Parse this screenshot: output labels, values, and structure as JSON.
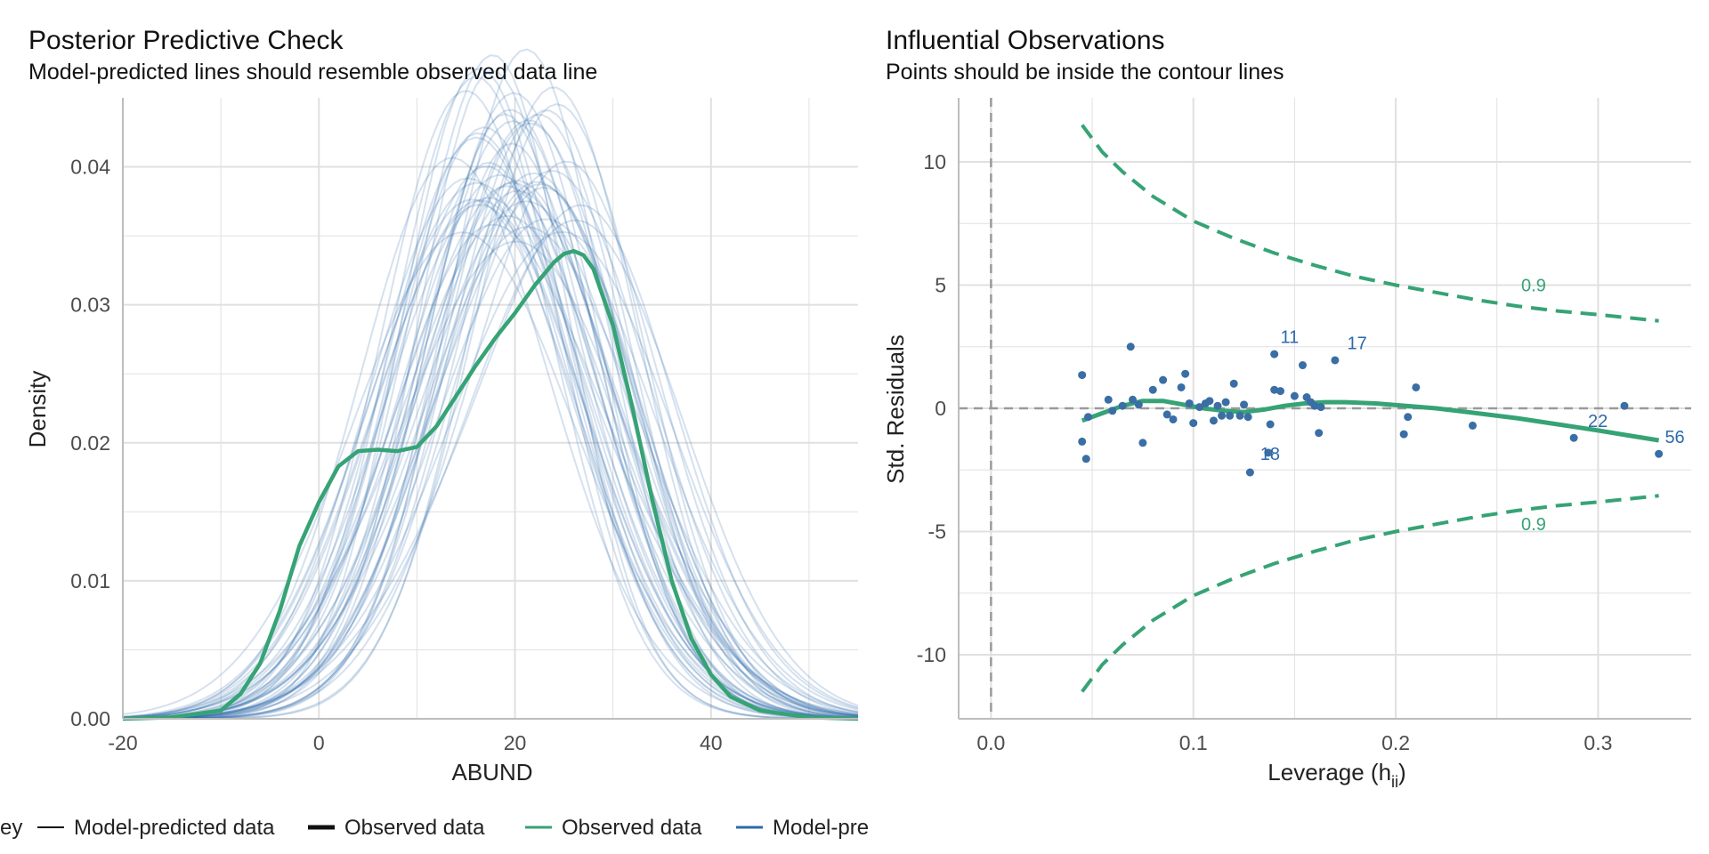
{
  "colors": {
    "observed": "#36A375",
    "predicted": "#2D6AAB",
    "points": "#3A6EA5",
    "grid": "#e0e0e0",
    "axis": "#bdbdbd",
    "reference": "#9a9a9a"
  },
  "legend": {
    "title": "ey",
    "items": [
      {
        "label": "Model-predicted data",
        "style": "thin-black"
      },
      {
        "label": "Observed data",
        "style": "thick-black"
      },
      {
        "label": "Observed data",
        "style": "green"
      },
      {
        "label": "Model-pre",
        "style": "blue"
      }
    ]
  },
  "chart_data": [
    {
      "type": "line",
      "title": "Posterior Predictive Check",
      "subtitle": "Model-predicted lines should resemble observed data line",
      "xlabel": "ABUND",
      "ylabel": "Density",
      "xlim": [
        -20,
        55
      ],
      "ylim": [
        0,
        0.045
      ],
      "xticks": [
        -20,
        0,
        20,
        40
      ],
      "xtick_labels": [
        "-20",
        "0",
        "20",
        "40"
      ],
      "yticks": [
        0,
        0.01,
        0.02,
        0.03,
        0.04
      ],
      "ytick_labels": [
        "0.00",
        "0.01",
        "0.02",
        "0.03",
        "0.04"
      ],
      "grid": true,
      "series": [
        {
          "name": "Observed data",
          "x": [
            -20,
            -15,
            -10,
            -8,
            -6,
            -4,
            -2,
            0,
            2,
            4,
            6,
            8,
            10,
            12,
            14,
            16,
            18,
            20,
            22,
            24,
            25,
            26,
            27,
            28,
            30,
            32,
            34,
            36,
            38,
            40,
            42,
            45,
            50,
            55
          ],
          "y": [
            0.0,
            0.0001,
            0.0006,
            0.0018,
            0.004,
            0.0078,
            0.0125,
            0.0157,
            0.0183,
            0.0194,
            0.0195,
            0.0194,
            0.0197,
            0.0212,
            0.0234,
            0.0256,
            0.0276,
            0.0294,
            0.0314,
            0.0331,
            0.0337,
            0.0339,
            0.0336,
            0.0326,
            0.0285,
            0.0225,
            0.0159,
            0.01,
            0.0058,
            0.0032,
            0.0016,
            0.0006,
            0.0001,
            0.0
          ]
        }
      ],
      "predicted_draws": {
        "name": "Model-predicted data",
        "count": 50,
        "peak_x_range": [
          14,
          27
        ],
        "peak_density_range": [
          0.03,
          0.044
        ]
      }
    },
    {
      "type": "scatter",
      "title": "Influential Observations",
      "subtitle": "Points should be inside the contour lines",
      "xlabel": "Leverage (h",
      "xlabel_sub": "ii",
      "xlabel_end": ")",
      "ylabel": "Std. Residuals",
      "xlim": [
        -0.016,
        0.346
      ],
      "ylim": [
        -12.6,
        12.6
      ],
      "xticks": [
        0,
        0.1,
        0.2,
        0.3
      ],
      "xtick_labels": [
        "0.0",
        "0.1",
        "0.2",
        "0.3"
      ],
      "yticks": [
        -10,
        -5,
        0,
        5,
        10
      ],
      "ytick_labels": [
        "-10",
        "-5",
        "0",
        "5",
        "10"
      ],
      "grid": true,
      "points": [
        {
          "x": 0.045,
          "y": 1.35
        },
        {
          "x": 0.045,
          "y": -1.35
        },
        {
          "x": 0.047,
          "y": -2.05
        },
        {
          "x": 0.048,
          "y": -0.35
        },
        {
          "x": 0.058,
          "y": 0.35
        },
        {
          "x": 0.06,
          "y": -0.1
        },
        {
          "x": 0.065,
          "y": 0.1
        },
        {
          "x": 0.069,
          "y": 2.5
        },
        {
          "x": 0.07,
          "y": 0.35
        },
        {
          "x": 0.073,
          "y": 0.15
        },
        {
          "x": 0.075,
          "y": -1.4
        },
        {
          "x": 0.08,
          "y": 0.75
        },
        {
          "x": 0.085,
          "y": 1.15
        },
        {
          "x": 0.087,
          "y": -0.25
        },
        {
          "x": 0.09,
          "y": -0.45
        },
        {
          "x": 0.094,
          "y": 0.85
        },
        {
          "x": 0.096,
          "y": 1.4
        },
        {
          "x": 0.098,
          "y": 0.2
        },
        {
          "x": 0.1,
          "y": -0.6
        },
        {
          "x": 0.103,
          "y": 0.05
        },
        {
          "x": 0.106,
          "y": 0.2
        },
        {
          "x": 0.108,
          "y": 0.3
        },
        {
          "x": 0.11,
          "y": -0.5
        },
        {
          "x": 0.112,
          "y": 0.1
        },
        {
          "x": 0.114,
          "y": -0.3
        },
        {
          "x": 0.116,
          "y": 0.25
        },
        {
          "x": 0.118,
          "y": -0.3
        },
        {
          "x": 0.12,
          "y": 1.0
        },
        {
          "x": 0.123,
          "y": -0.3
        },
        {
          "x": 0.125,
          "y": 0.15
        },
        {
          "x": 0.127,
          "y": -0.35
        },
        {
          "x": 0.128,
          "y": -2.6
        },
        {
          "x": 0.137,
          "y": -1.8
        },
        {
          "x": 0.138,
          "y": -0.65
        },
        {
          "x": 0.14,
          "y": 2.2
        },
        {
          "x": 0.14,
          "y": 0.75
        },
        {
          "x": 0.143,
          "y": 0.7
        },
        {
          "x": 0.15,
          "y": 0.5
        },
        {
          "x": 0.154,
          "y": 1.75
        },
        {
          "x": 0.156,
          "y": 0.45
        },
        {
          "x": 0.158,
          "y": 0.25
        },
        {
          "x": 0.16,
          "y": 0.1
        },
        {
          "x": 0.162,
          "y": -1.0
        },
        {
          "x": 0.163,
          "y": 0.05
        },
        {
          "x": 0.17,
          "y": 1.95
        },
        {
          "x": 0.204,
          "y": -1.05
        },
        {
          "x": 0.206,
          "y": -0.35
        },
        {
          "x": 0.21,
          "y": 0.85
        },
        {
          "x": 0.238,
          "y": -0.7
        },
        {
          "x": 0.288,
          "y": -1.2
        },
        {
          "x": 0.313,
          "y": 0.1
        },
        {
          "x": 0.33,
          "y": -1.85
        }
      ],
      "point_labels": [
        {
          "text": "11",
          "x": 0.143,
          "y": 2.9
        },
        {
          "text": "17",
          "x": 0.176,
          "y": 2.65
        },
        {
          "text": "18",
          "x": 0.133,
          "y": -1.85
        },
        {
          "text": "22",
          "x": 0.295,
          "y": -0.5
        },
        {
          "text": "56",
          "x": 0.333,
          "y": -1.15
        }
      ],
      "loess": {
        "x": [
          0.045,
          0.055,
          0.065,
          0.075,
          0.085,
          0.095,
          0.105,
          0.115,
          0.125,
          0.135,
          0.145,
          0.155,
          0.165,
          0.175,
          0.19,
          0.205,
          0.22,
          0.24,
          0.26,
          0.28,
          0.3,
          0.315,
          0.33
        ],
        "y": [
          -0.5,
          -0.2,
          0.1,
          0.3,
          0.3,
          0.15,
          0.0,
          -0.1,
          -0.15,
          -0.05,
          0.1,
          0.2,
          0.25,
          0.25,
          0.2,
          0.1,
          0.0,
          -0.2,
          -0.4,
          -0.65,
          -0.9,
          -1.1,
          -1.3
        ]
      },
      "contours": [
        {
          "label": "0.9",
          "label_x": 0.262,
          "label_y": 5.0,
          "x": [
            0.045,
            0.055,
            0.065,
            0.08,
            0.1,
            0.12,
            0.14,
            0.16,
            0.18,
            0.2,
            0.22,
            0.24,
            0.26,
            0.28,
            0.3,
            0.33
          ],
          "y": [
            11.5,
            10.4,
            9.6,
            8.6,
            7.6,
            6.9,
            6.3,
            5.8,
            5.35,
            5.0,
            4.7,
            4.4,
            4.15,
            3.95,
            3.8,
            3.55
          ]
        },
        {
          "label": "0.9",
          "label_x": 0.262,
          "label_y": -4.7,
          "x": [
            0.045,
            0.055,
            0.065,
            0.08,
            0.1,
            0.12,
            0.14,
            0.16,
            0.18,
            0.2,
            0.22,
            0.24,
            0.26,
            0.28,
            0.3,
            0.33
          ],
          "y": [
            -11.5,
            -10.4,
            -9.6,
            -8.6,
            -7.6,
            -6.9,
            -6.3,
            -5.8,
            -5.35,
            -5.0,
            -4.7,
            -4.4,
            -4.15,
            -3.95,
            -3.8,
            -3.55
          ]
        }
      ],
      "reference_lines": {
        "x": 0,
        "y": 0
      }
    }
  ]
}
